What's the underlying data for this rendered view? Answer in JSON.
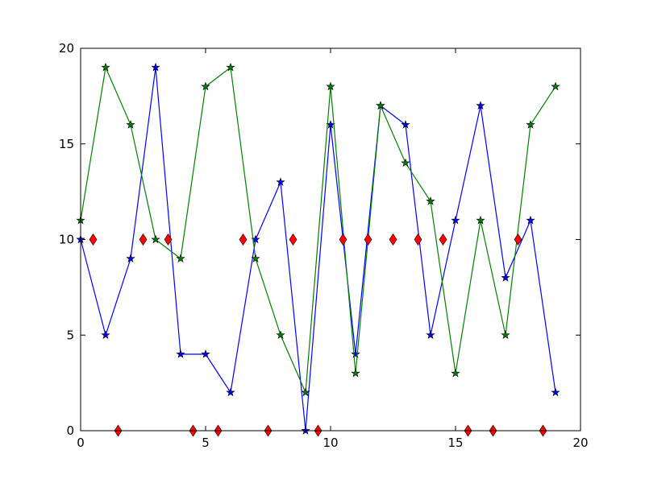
{
  "chart_data": {
    "type": "line",
    "x": [
      0,
      1,
      2,
      3,
      4,
      5,
      6,
      7,
      8,
      9,
      10,
      11,
      12,
      13,
      14,
      15,
      16,
      17,
      18,
      19
    ],
    "series": [
      {
        "color": "#0000ff",
        "marker": "star",
        "line": true,
        "values": [
          10,
          5,
          9,
          19,
          4,
          4,
          2,
          10,
          13,
          0,
          16,
          4,
          17,
          16,
          5,
          11,
          17,
          8,
          11,
          2
        ]
      },
      {
        "color": "#008000",
        "marker": "star",
        "line": true,
        "values": [
          11,
          19,
          16,
          10,
          9,
          18,
          19,
          9,
          5,
          2,
          18,
          3,
          17,
          14,
          12,
          3,
          11,
          5,
          16,
          18
        ]
      },
      {
        "color": "#ff0000",
        "marker": "diamond",
        "line": false,
        "x": [
          0.5,
          1.5,
          2.5,
          3.5,
          4.5,
          5.5,
          6.5,
          7.5,
          8.5,
          9.5,
          10.5,
          11.5,
          12.5,
          13.5,
          14.5,
          15.5,
          16.5,
          17.5,
          18.5
        ],
        "values": [
          10,
          0,
          10,
          10,
          0,
          0,
          10,
          0,
          10,
          0,
          10,
          10,
          10,
          10,
          10,
          0,
          0,
          10,
          0
        ]
      }
    ],
    "xlim": [
      0,
      20
    ],
    "ylim": [
      0,
      20
    ],
    "xticks": [
      0,
      5,
      10,
      15,
      20
    ],
    "yticks": [
      0,
      5,
      10,
      15,
      20
    ],
    "grid": false
  }
}
